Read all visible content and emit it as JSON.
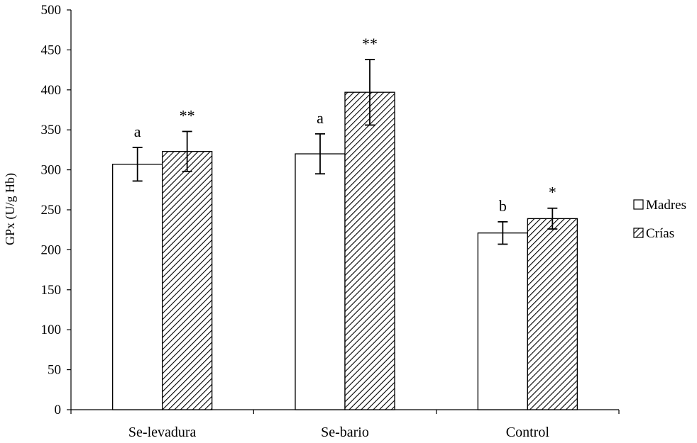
{
  "chart_data": {
    "type": "bar",
    "categories": [
      "Se-levadura",
      "Se-bario",
      "Control"
    ],
    "series": [
      {
        "name": "Madres",
        "values": [
          307,
          320,
          221
        ],
        "errors": [
          21,
          25,
          14
        ],
        "annotations": [
          "a",
          "a",
          "b"
        ],
        "fill": "#ffffff",
        "pattern": "none"
      },
      {
        "name": "Crías",
        "values": [
          323,
          397,
          239
        ],
        "errors": [
          25,
          41,
          13
        ],
        "annotations": [
          "**",
          "**",
          "*"
        ],
        "fill": "#ffffff",
        "pattern": "diagonal-hatch"
      }
    ],
    "ylabel": "GPx (U/g Hb)",
    "xlabel": "",
    "ylim": [
      0,
      500
    ],
    "yticks": [
      0,
      50,
      100,
      150,
      200,
      250,
      300,
      350,
      400,
      450,
      500
    ],
    "grid": false,
    "legend": "right",
    "colors": {
      "stroke": "#000000",
      "hatch": "#000000",
      "background": "#ffffff"
    }
  }
}
